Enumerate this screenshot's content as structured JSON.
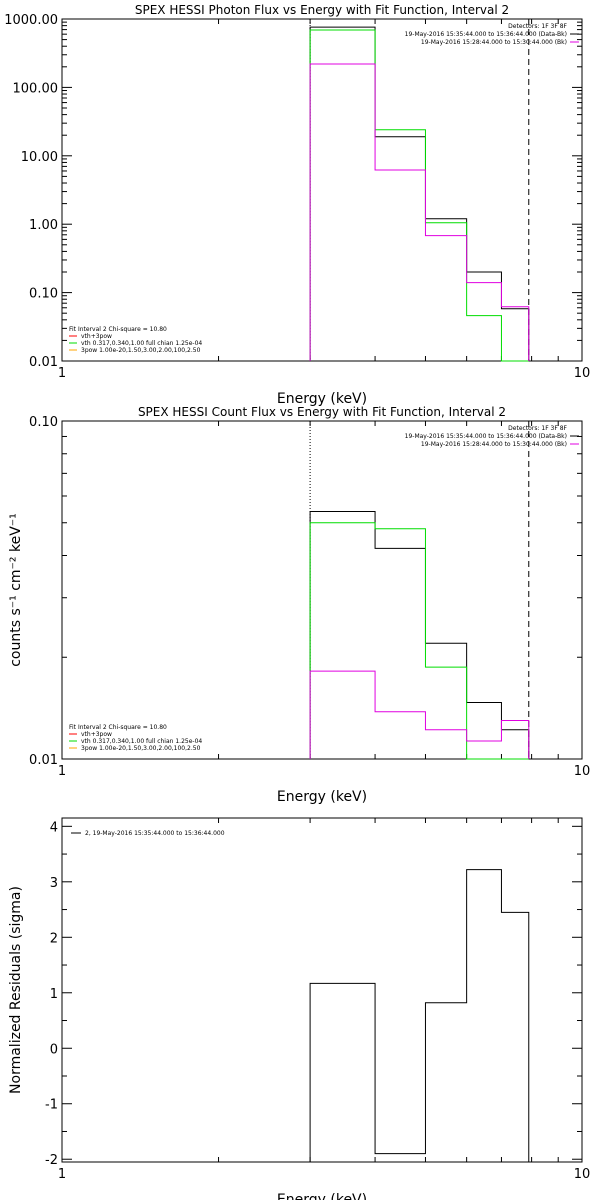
{
  "colors": {
    "background": "#ffffff",
    "axes": "#000000",
    "black": "#000000",
    "red": "#ff0000",
    "green": "#00dd00",
    "magenta": "#e000e0",
    "orange": "#ffa500"
  },
  "chart_data": [
    {
      "type": "line",
      "title": "SPEX HESSI Photon Flux vs Energy with Fit Function, Interval 2",
      "xlabel": "Energy (keV)",
      "ylabel": "",
      "x_scale": "log",
      "y_scale": "log",
      "xlim": [
        1,
        10
      ],
      "ylim": [
        0.01,
        1000
      ],
      "x_ticks": [
        {
          "v": 1,
          "label": "1"
        },
        {
          "v": 10,
          "label": "10"
        }
      ],
      "y_ticks": [
        {
          "v": 1000,
          "label": "1000.00"
        },
        {
          "v": 100,
          "label": "100.00"
        },
        {
          "v": 10,
          "label": "10.00"
        },
        {
          "v": 1,
          "label": "1.00"
        },
        {
          "v": 0.1,
          "label": "0.10"
        },
        {
          "v": 0.01,
          "label": "0.01"
        }
      ],
      "vlines": [
        {
          "x": 3.0,
          "style": "dotted"
        },
        {
          "x": 7.9,
          "style": "dashed"
        }
      ],
      "edges": [
        3.0,
        4.0,
        5.0,
        6.0,
        7.0,
        7.9
      ],
      "series": [
        {
          "color": "#000000",
          "values": [
            760,
            19,
            1.2,
            0.2,
            0.058
          ]
        },
        {
          "color": "#00dd00",
          "values": [
            690,
            24,
            1.05,
            0.046,
            0.006
          ]
        },
        {
          "color": "#e000e0",
          "values": [
            220,
            6.2,
            0.68,
            0.14,
            0.062
          ]
        }
      ],
      "legend_tr": [
        {
          "text": "Detectors: 1F 3F 8F",
          "color": ""
        },
        {
          "text": "19-May-2016 15:35:44.000 to 15:36:44.000 (Data-Bk)",
          "color": "#000000"
        },
        {
          "text": "19-May-2016 15:28:44.000 to 15:30:44.000 (Bk)",
          "color": "#e000e0"
        }
      ],
      "legend_bl": [
        {
          "text": "Fit Interval 2   Chi-square = 10.80",
          "color": ""
        },
        {
          "text": "vth+3pow",
          "color": "#ff0000"
        },
        {
          "text": "vth 0.317,0.340,1.00  full chian 1.25e-04",
          "color": "#00dd00"
        },
        {
          "text": "3pow 1.00e-20,1.50,3.00,2.00,100,2.50",
          "color": "#ffa500"
        }
      ]
    },
    {
      "type": "line",
      "title": "SPEX HESSI Count Flux vs Energy with Fit Function, Interval 2",
      "xlabel": "Energy (keV)",
      "ylabel": "counts s⁻¹ cm⁻² keV⁻¹",
      "x_scale": "log",
      "y_scale": "log",
      "xlim": [
        1,
        10
      ],
      "ylim": [
        0.01,
        0.1
      ],
      "x_ticks": [
        {
          "v": 1,
          "label": "1"
        },
        {
          "v": 10,
          "label": "10"
        }
      ],
      "y_ticks": [
        {
          "v": 0.1,
          "label": "0.10"
        },
        {
          "v": 0.01,
          "label": "0.01"
        }
      ],
      "vlines": [
        {
          "x": 3.0,
          "style": "dotted"
        },
        {
          "x": 7.9,
          "style": "dashed"
        }
      ],
      "edges": [
        3.0,
        4.0,
        5.0,
        6.0,
        7.0,
        7.9
      ],
      "series": [
        {
          "color": "#000000",
          "values": [
            0.054,
            0.042,
            0.022,
            0.0147,
            0.0122
          ]
        },
        {
          "color": "#00dd00",
          "values": [
            0.05,
            0.048,
            0.0187,
            0.0095,
            0.0095
          ]
        },
        {
          "color": "#e000e0",
          "values": [
            0.0182,
            0.0138,
            0.0122,
            0.0113,
            0.013
          ]
        }
      ],
      "legend_tr": [
        {
          "text": "Detectors: 1F 3F 8F",
          "color": ""
        },
        {
          "text": "19-May-2016 15:35:44.000 to 15:36:44.000 (Data-Bk)",
          "color": "#000000"
        },
        {
          "text": "19-May-2016 15:28:44.000 to 15:30:44.000 (Bk)",
          "color": "#e000e0"
        }
      ],
      "legend_bl": [
        {
          "text": "Fit Interval 2   Chi-square = 10.80",
          "color": ""
        },
        {
          "text": "vth+3pow",
          "color": "#ff0000"
        },
        {
          "text": "vth 0.317,0.340,1.00  full chian 1.25e-04",
          "color": "#00dd00"
        },
        {
          "text": "3pow 1.00e-20,1.50,3.00,2.00,100,2.50",
          "color": "#ffa500"
        }
      ]
    },
    {
      "type": "line",
      "title": "",
      "xlabel": "Energy (keV)",
      "ylabel": "Normalized Residuals (sigma)",
      "x_scale": "log",
      "y_scale": "linear",
      "xlim": [
        1,
        10
      ],
      "ylim": [
        -2.05,
        4.15
      ],
      "x_ticks": [
        {
          "v": 1,
          "label": "1"
        },
        {
          "v": 10,
          "label": "10"
        }
      ],
      "y_ticks": [
        {
          "v": 4,
          "label": "4"
        },
        {
          "v": 3,
          "label": "3"
        },
        {
          "v": 2,
          "label": "2"
        },
        {
          "v": 1,
          "label": "1"
        },
        {
          "v": 0,
          "label": "0"
        },
        {
          "v": -1,
          "label": "-1"
        },
        {
          "v": -2,
          "label": "-2"
        }
      ],
      "vlines": [],
      "edges": [
        3.0,
        4.0,
        5.0,
        6.0,
        7.0,
        7.9
      ],
      "series": [
        {
          "color": "#000000",
          "values": [
            1.17,
            -1.9,
            0.82,
            3.22,
            2.45
          ]
        }
      ],
      "legend_tr": [],
      "legend_bl": [],
      "legend_tl": [
        {
          "text": "2, 19-May-2016 15:35:44.000 to 15:36:44.000",
          "color": "#000000"
        }
      ]
    }
  ]
}
